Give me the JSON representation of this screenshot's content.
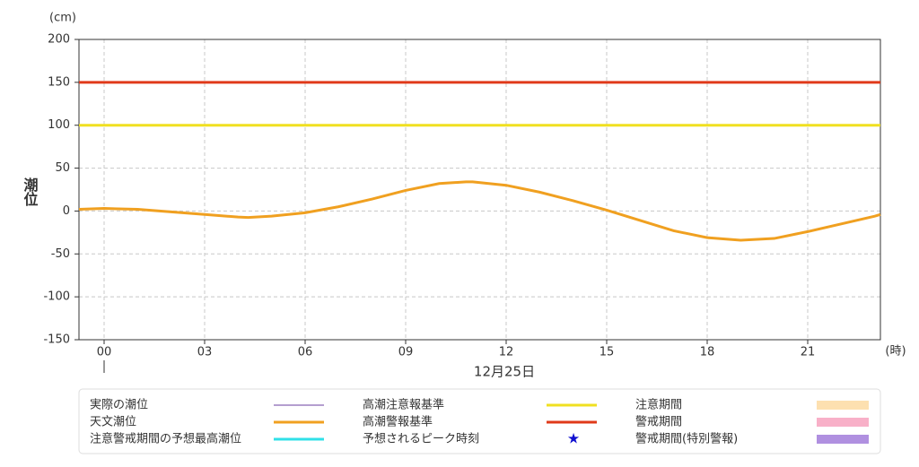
{
  "chart_data": {
    "type": "line",
    "y_label": "潮位",
    "y_unit": "(cm)",
    "x_unit": "(時)",
    "date_label": "12月25日",
    "xlim": [
      -0.75,
      23.17
    ],
    "ylim": [
      -150,
      200
    ],
    "xticks": [
      {
        "value": 0,
        "label": "00"
      },
      {
        "value": 3,
        "label": "03"
      },
      {
        "value": 6,
        "label": "06"
      },
      {
        "value": 9,
        "label": "09"
      },
      {
        "value": 12,
        "label": "12"
      },
      {
        "value": 15,
        "label": "15"
      },
      {
        "value": 18,
        "label": "18"
      },
      {
        "value": 21,
        "label": "21"
      }
    ],
    "yticks": [
      -150,
      -100,
      -50,
      0,
      50,
      100,
      150,
      200
    ],
    "grid": true,
    "series": [
      {
        "name": "実際の潮位",
        "color": "#9b7fc0",
        "symbol": "thin-line"
      },
      {
        "name": "天文潮位",
        "color": "#f0a020",
        "symbol": "line",
        "x": [
          -0.75,
          0,
          1,
          2,
          3,
          4,
          4.3,
          5,
          6,
          7,
          8,
          9,
          10,
          10.8,
          11,
          12,
          13,
          14,
          15,
          16,
          17,
          18,
          19,
          20,
          21,
          22,
          23,
          23.17
        ],
        "values": [
          2,
          3,
          2,
          -1,
          -4,
          -7,
          -7.5,
          -6,
          -2,
          5,
          14,
          24,
          32,
          34,
          34,
          30,
          22,
          12,
          1,
          -11,
          -23,
          -31,
          -34,
          -32,
          -24,
          -15,
          -6,
          -4
        ]
      },
      {
        "name": "注意警戒期間の予想最高潮位",
        "color": "#30e0e8",
        "symbol": "line"
      },
      {
        "name": "高潮注意報基準",
        "color": "#f0e020",
        "symbol": "line",
        "value": 100
      },
      {
        "name": "高潮警報基準",
        "color": "#e03a1a",
        "symbol": "line",
        "value": 150
      },
      {
        "name": "予想されるピーク時刻",
        "color": "#1010d0",
        "symbol": "star"
      },
      {
        "name": "注意期間",
        "color": "#fde0b0",
        "symbol": "box"
      },
      {
        "name": "警戒期間",
        "color": "#f8b0c8",
        "symbol": "box"
      },
      {
        "name": "警戒期間(特別警報)",
        "color": "#b090e0",
        "symbol": "box"
      }
    ]
  }
}
